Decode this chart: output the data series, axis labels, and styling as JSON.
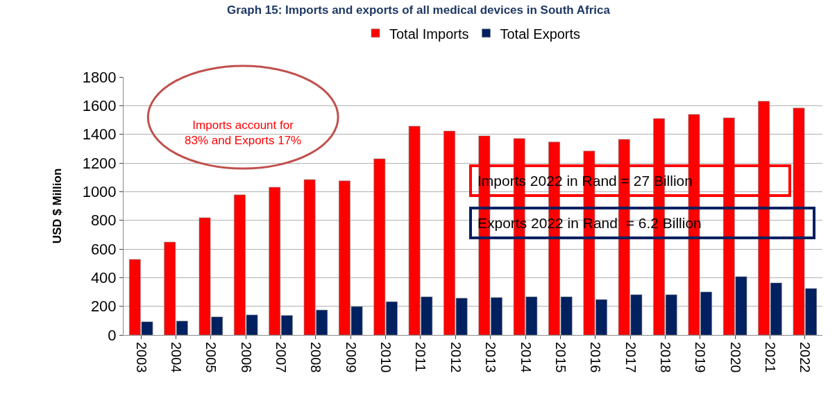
{
  "chart_data": {
    "type": "bar",
    "title": "Graph 15: Imports and exports of all medical devices in South Africa",
    "ylabel": "USD $ Million",
    "categories": [
      "2003",
      "2004",
      "2005",
      "2006",
      "2007",
      "2008",
      "2009",
      "2010",
      "2011",
      "2012",
      "2013",
      "2014",
      "2015",
      "2016",
      "2017",
      "2018",
      "2019",
      "2020",
      "2021",
      "2022"
    ],
    "series": [
      {
        "name": "Total Imports",
        "color": "#ff0000",
        "values": [
          527,
          648,
          818,
          978,
          1031,
          1084,
          1075,
          1229,
          1457,
          1423,
          1389,
          1370,
          1346,
          1283,
          1365,
          1510,
          1539,
          1515,
          1631,
          1583
        ]
      },
      {
        "name": "Total Exports",
        "color": "#002060",
        "values": [
          92,
          97,
          126,
          140,
          136,
          174,
          198,
          232,
          266,
          257,
          261,
          266,
          266,
          247,
          281,
          281,
          300,
          407,
          363,
          324
        ]
      }
    ],
    "ylim": [
      0,
      1800
    ],
    "yticks": [
      0,
      200,
      400,
      600,
      800,
      1000,
      1200,
      1400,
      1600,
      1800
    ],
    "grid": "y",
    "legend": "top",
    "annotations": [
      "Imports account for 83% and Exports 17%",
      "Imports 2022 in Rand = 27 Billion",
      "Exports 2022 in Rand  = 6.2 Billion"
    ]
  }
}
